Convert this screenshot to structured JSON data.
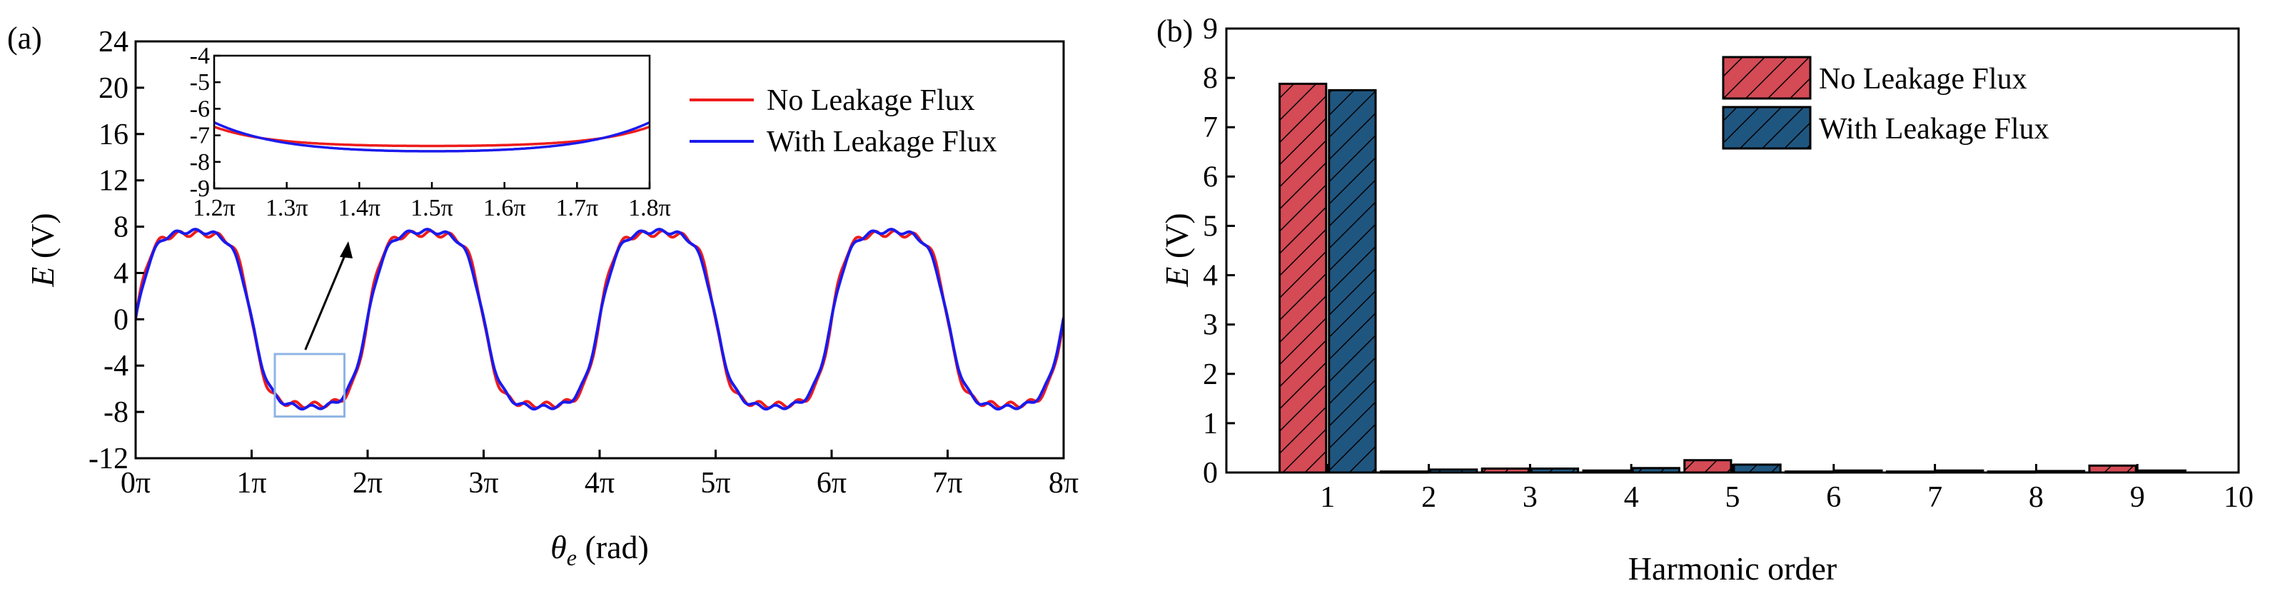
{
  "panel_a_label": "(a)",
  "panel_b_label": "(b)",
  "chart_data": [
    {
      "type": "line",
      "title": "",
      "xlabel_symbol": "θ",
      "xlabel_sub": "e",
      "xlabel_unit": " (rad)",
      "ylabel_symbol": "E",
      "ylabel_unit": " (V)",
      "xlim": [
        0,
        8
      ],
      "ylim": [
        -12,
        24
      ],
      "xticks": [
        0,
        1,
        2,
        3,
        4,
        5,
        6,
        7,
        8
      ],
      "xtick_labels": [
        "0π",
        "1π",
        "2π",
        "3π",
        "4π",
        "5π",
        "6π",
        "7π",
        "8π"
      ],
      "yticks": [
        -12,
        -8,
        -4,
        0,
        4,
        8,
        12,
        16,
        20,
        24
      ],
      "ytick_labels": [
        "-12",
        "-8",
        "-4",
        "0",
        "4",
        "8",
        "12",
        "16",
        "20",
        "24"
      ],
      "x_units": "π rad",
      "series": [
        {
          "name": "No Leakage Flux",
          "color": "#ee1c1c",
          "amplitude": 7.4,
          "period": 2,
          "flat_top": 0.35
        },
        {
          "name": "With Leakage Flux",
          "color": "#1a1aee",
          "amplitude": 7.6,
          "period": 2,
          "flat_top": 0.25
        }
      ],
      "zoom_box": {
        "x": [
          1.2,
          1.8
        ],
        "y": [
          -8.4,
          -3
        ]
      },
      "inset": {
        "xlim": [
          1.2,
          1.8
        ],
        "ylim": [
          -9,
          -4
        ],
        "xticks": [
          1.2,
          1.3,
          1.4,
          1.5,
          1.6,
          1.7,
          1.8
        ],
        "xtick_labels": [
          "1.2π",
          "1.3π",
          "1.4π",
          "1.5π",
          "1.6π",
          "1.7π",
          "1.8π"
        ],
        "yticks": [
          -4,
          -5,
          -6,
          -7,
          -8,
          -9
        ],
        "ytick_labels": [
          "-4",
          "-5",
          "-6",
          "-7",
          "-8",
          "-9"
        ]
      }
    },
    {
      "type": "bar",
      "title": "",
      "xlabel": "Harmonic order",
      "ylabel_symbol": "E",
      "ylabel_unit": " (V)",
      "xlim": [
        0,
        10
      ],
      "ylim": [
        0,
        9
      ],
      "categories": [
        1,
        2,
        3,
        4,
        5,
        6,
        7,
        8,
        9
      ],
      "xticks": [
        1,
        2,
        3,
        4,
        5,
        6,
        7,
        8,
        9,
        10
      ],
      "xtick_labels": [
        "1",
        "2",
        "3",
        "4",
        "5",
        "6",
        "7",
        "8",
        "9",
        "10"
      ],
      "yticks": [
        0,
        1,
        2,
        3,
        4,
        5,
        6,
        7,
        8,
        9
      ],
      "ytick_labels": [
        "0",
        "1",
        "2",
        "3",
        "4",
        "5",
        "6",
        "7",
        "8",
        "9"
      ],
      "series": [
        {
          "name": "No Leakage Flux",
          "color": "#d44a55",
          "values": [
            7.88,
            0.02,
            0.08,
            0.04,
            0.25,
            0.02,
            0.02,
            0.02,
            0.14
          ]
        },
        {
          "name": "With Leakage Flux",
          "color": "#1f5680",
          "values": [
            7.75,
            0.06,
            0.08,
            0.09,
            0.16,
            0.04,
            0.04,
            0.03,
            0.04
          ]
        }
      ]
    }
  ]
}
